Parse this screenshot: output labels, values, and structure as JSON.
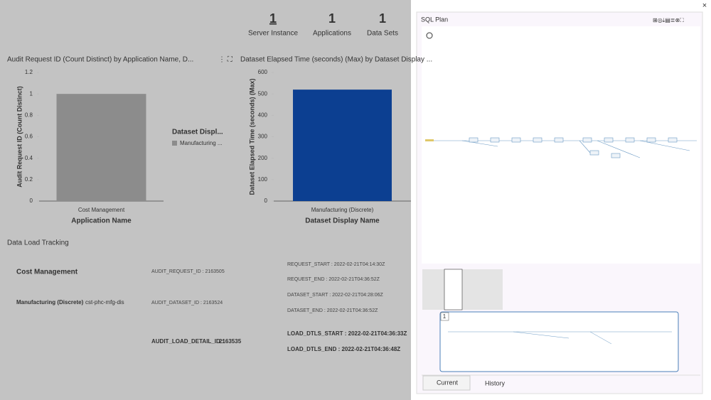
{
  "stats": [
    {
      "value": 1,
      "label": "Server Instance"
    },
    {
      "value": 1,
      "label": "Applications"
    },
    {
      "value": 1,
      "label": "Data Sets"
    }
  ],
  "chart_data": [
    {
      "type": "bar",
      "title": "Audit Request ID (Count Distinct) by Application Name, D...",
      "categories": [
        "Cost Management"
      ],
      "values": [
        1
      ],
      "color": "#8c8c8c",
      "x_label": "Application Name",
      "y_label": "Audit Request ID (Count Distinct)",
      "ylim": [
        0,
        1.2
      ],
      "yticks": [
        0,
        0.2,
        0.4,
        0.6,
        0.8,
        1,
        1.2
      ],
      "legend_title": "Dataset Displ...",
      "legend": [
        "Manufacturing ..."
      ]
    },
    {
      "type": "bar",
      "title": "Dataset Elapsed Time (seconds) (Max) by Dataset Display ...",
      "categories": [
        "Manufacturing (Discrete)"
      ],
      "values": [
        520
      ],
      "color": "#0c3f91",
      "x_label": "Dataset Display Name",
      "y_label": "Dataset Elapsed Time (seconds) (Max)",
      "ylim": [
        0,
        600
      ],
      "yticks": [
        0,
        100,
        200,
        300,
        400,
        500,
        600
      ]
    }
  ],
  "data_load_tracking": {
    "title": "Data Load Tracking",
    "application": "Cost Management",
    "dataset": "Manufacturing (Discrete)",
    "dataset_code": "cst-phc-mfg-dis",
    "audit_request_id": "AUDIT_REQUEST_ID : 2163505",
    "audit_dataset_id": "AUDIT_DATASET_ID : 2163524",
    "audit_load_detail_label": "AUDIT_LOAD_DETAIL_ID :",
    "audit_load_detail_id": "2163535",
    "request_start": "REQUEST_START : 2022-02-21T04:14:30Z",
    "request_end": "REQUEST_END : 2022-02-21T04:36:52Z",
    "dataset_start": "DATASET_START : 2022-02-21T04:28:06Z",
    "dataset_end": "DATASET_END : 2022-02-21T04:36:52Z",
    "load_dtls_start": "LOAD_DTLS_START : 2022-02-21T04:36:33Z",
    "load_dtls_end": "LOAD_DTLS_END : 2022-02-21T04:36:48Z"
  },
  "sql_plan": {
    "title": "SQL Plan",
    "page_number": "1",
    "tab_current": "Current",
    "tab_history": "History",
    "close": "×"
  }
}
